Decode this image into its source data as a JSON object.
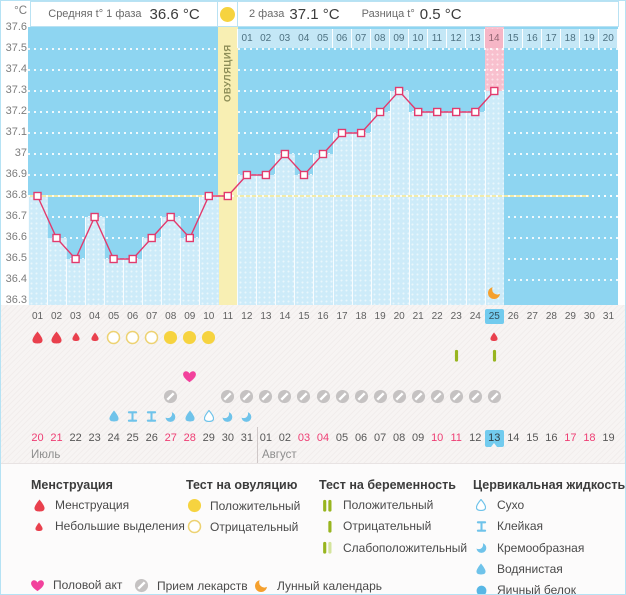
{
  "header": {
    "phase1_label": "Средняя t° 1 фаза",
    "phase1_value": "36.6 °C",
    "phase2_label": "2 фаза",
    "phase2_value": "37.1 °C",
    "diff_label": "Разница t°",
    "diff_value": "0.5 °C"
  },
  "axis": {
    "unit": "°C",
    "ticks": [
      "37.6",
      "37.5",
      "37.4",
      "37.3",
      "37.2",
      "37.1",
      "37",
      "36.9",
      "36.8",
      "36.7",
      "36.6",
      "36.5",
      "36.4",
      "36.3"
    ]
  },
  "chart_data": {
    "type": "line",
    "ylabel": "°C",
    "ylim": [
      36.3,
      37.6
    ],
    "grid": true,
    "coverline": 36.8,
    "cycle_days": [
      "01",
      "02",
      "03",
      "04",
      "05",
      "06",
      "07",
      "08",
      "09",
      "10",
      "11",
      "12",
      "13",
      "14",
      "15",
      "16",
      "17",
      "18",
      "19",
      "20",
      "21",
      "22",
      "23",
      "24",
      "25",
      "26",
      "27",
      "28",
      "29",
      "30",
      "31"
    ],
    "temperatures": [
      36.8,
      36.6,
      36.5,
      36.7,
      36.5,
      36.5,
      36.6,
      36.7,
      36.6,
      36.8,
      36.8,
      36.9,
      36.9,
      37.0,
      36.9,
      37.0,
      37.1,
      37.1,
      37.2,
      37.3,
      37.2,
      37.2,
      37.2,
      37.2,
      37.3
    ],
    "ovulation_day": 11,
    "ovulation_label": "ОВУЛЯЦИЯ",
    "highlighted_cycle_day": 25,
    "phase2_start_day": 12,
    "phase2_labels": [
      "01",
      "02",
      "03",
      "04",
      "05",
      "06",
      "07",
      "08",
      "09",
      "10",
      "11",
      "12",
      "13",
      "14",
      "15",
      "16",
      "17",
      "18",
      "19",
      "20"
    ]
  },
  "events": {
    "menstruation": [
      {
        "day": 1,
        "intensity": "heavy"
      },
      {
        "day": 2,
        "intensity": "heavy"
      },
      {
        "day": 3,
        "intensity": "light"
      },
      {
        "day": 4,
        "intensity": "light"
      },
      {
        "day": 25,
        "intensity": "light"
      }
    ],
    "ovulation_tests": [
      {
        "day": 5,
        "result": "negative"
      },
      {
        "day": 6,
        "result": "negative"
      },
      {
        "day": 7,
        "result": "negative"
      },
      {
        "day": 8,
        "result": "positive"
      },
      {
        "day": 9,
        "result": "positive"
      },
      {
        "day": 10,
        "result": "positive"
      }
    ],
    "pregnancy_tests": [
      {
        "day": 23,
        "result": "negative"
      },
      {
        "day": 25,
        "result": "negative"
      }
    ],
    "intercourse": [
      9
    ],
    "medication": [
      8,
      11,
      12,
      13,
      14,
      15,
      16,
      17,
      18,
      19,
      20,
      21,
      22,
      23,
      24,
      25
    ],
    "cervical_fluid": [
      {
        "day": 5,
        "type": "watery"
      },
      {
        "day": 6,
        "type": "sticky"
      },
      {
        "day": 7,
        "type": "sticky"
      },
      {
        "day": 8,
        "type": "creamy"
      },
      {
        "day": 9,
        "type": "watery"
      },
      {
        "day": 10,
        "type": "dry"
      },
      {
        "day": 11,
        "type": "creamy"
      },
      {
        "day": 12,
        "type": "creamy"
      }
    ],
    "lunar": [
      25
    ]
  },
  "dates": {
    "months": [
      {
        "name": "Июль",
        "start_column": 1,
        "days": [
          "20",
          "21",
          "22",
          "23",
          "24",
          "25",
          "26",
          "27",
          "28",
          "29",
          "30",
          "31"
        ],
        "weekend_days": [
          "20",
          "21",
          "27",
          "28"
        ]
      },
      {
        "name": "Август",
        "start_column": 13,
        "days": [
          "01",
          "02",
          "03",
          "04",
          "05",
          "06",
          "07",
          "08",
          "09",
          "10",
          "11",
          "12",
          "13",
          "14",
          "15",
          "16",
          "17",
          "18",
          "19"
        ],
        "weekend_days": [
          "03",
          "04",
          "10",
          "11",
          "17",
          "18"
        ],
        "today": "13"
      }
    ]
  },
  "legend": {
    "groups": [
      {
        "title": "Менструация",
        "items": [
          {
            "icon": "drop-large",
            "label": "Менструация"
          },
          {
            "icon": "drop-small",
            "label": "Небольшие выделения"
          }
        ]
      },
      {
        "title": "Тест на овуляцию",
        "items": [
          {
            "icon": "circle-filled",
            "label": "Положительный"
          },
          {
            "icon": "circle-outline",
            "label": "Отрицательный"
          }
        ]
      },
      {
        "title": "Тест на беременность",
        "items": [
          {
            "icon": "bars-double",
            "label": "Положительный"
          },
          {
            "icon": "bar-single",
            "label": "Отрицательный"
          },
          {
            "icon": "bars-weak",
            "label": "Слабоположительный"
          }
        ]
      },
      {
        "title": "Цервикальная жидкость",
        "items": [
          {
            "icon": "drop-outline",
            "label": "Сухо"
          },
          {
            "icon": "hourglass",
            "label": "Клейкая"
          },
          {
            "icon": "crescent",
            "label": "Кремообразная"
          },
          {
            "icon": "drop-filled",
            "label": "Водянистая"
          },
          {
            "icon": "circle-blue",
            "label": "Яичный белок"
          }
        ]
      }
    ],
    "footer": [
      {
        "icon": "heart",
        "label": "Половой акт"
      },
      {
        "icon": "pill",
        "label": "Прием лекарств"
      },
      {
        "icon": "moon",
        "label": "Лунный календарь"
      }
    ]
  },
  "colors": {
    "line": "#e23a6d",
    "coverline": "#f0ebab",
    "chart_bg": "#8ed5f1",
    "bar": "#cdebf9",
    "ovulation_column": "#f8efb3",
    "highlight_column": "#f8c0ce",
    "highlight_cell": "#f6b6c6",
    "day_highlight": "#72cbee",
    "menstruation": "#e9404d",
    "ovulation_test": "#f6d33f",
    "pregnancy_test": "#98b51f",
    "pregnancy_test_weak": "#d4e49c",
    "cervical": "#6fc3ea",
    "heart": "#f2419c",
    "pill": "#c5c2c2",
    "moon": "#f5a02d",
    "weekend_date": "#ee3d73"
  }
}
